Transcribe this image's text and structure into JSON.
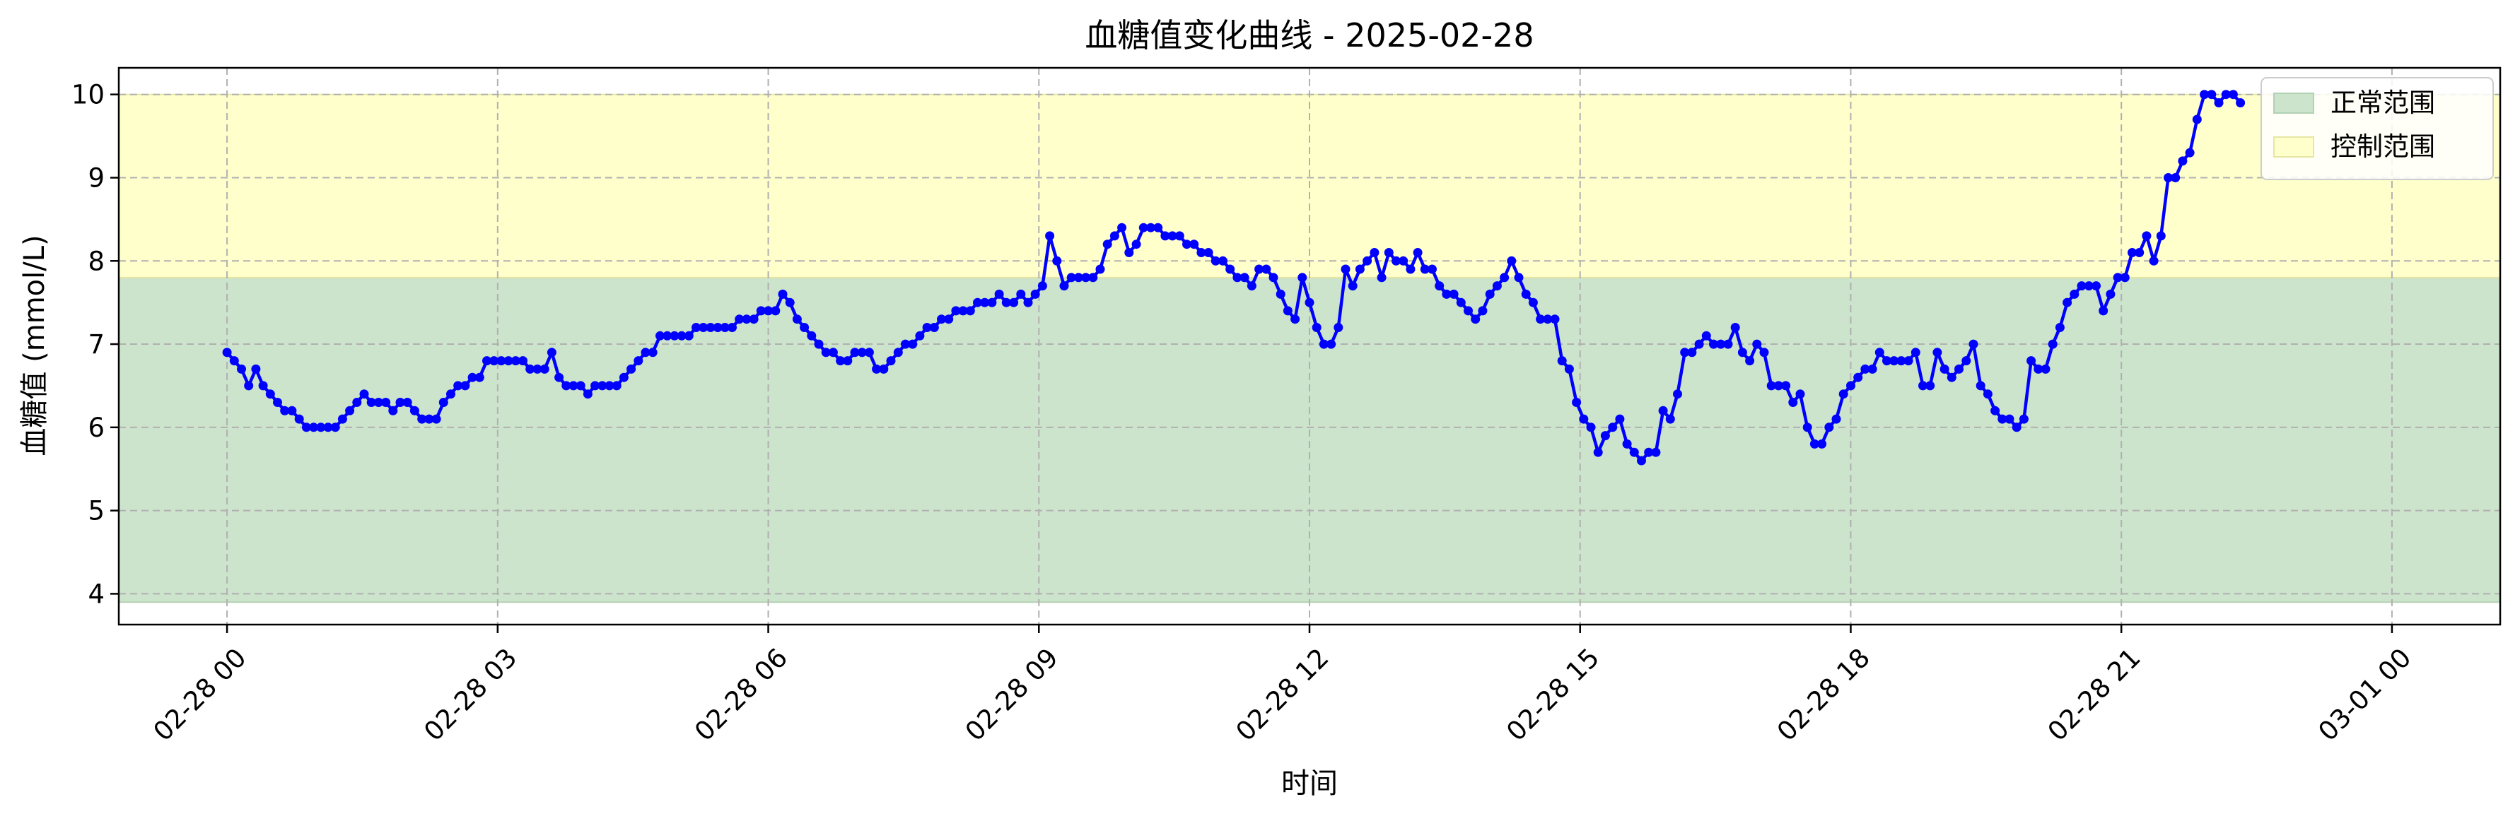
{
  "chart_data": {
    "type": "line",
    "title": "血糖值变化曲线 - 2025-02-28",
    "xlabel": "时间",
    "ylabel": "血糖值 (mmol/L)",
    "x_ticks": [
      {
        "label": "02-28 00",
        "hour": 0
      },
      {
        "label": "02-28 03",
        "hour": 3
      },
      {
        "label": "02-28 06",
        "hour": 6
      },
      {
        "label": "02-28 09",
        "hour": 9
      },
      {
        "label": "02-28 12",
        "hour": 12
      },
      {
        "label": "02-28 15",
        "hour": 15
      },
      {
        "label": "02-28 18",
        "hour": 18
      },
      {
        "label": "02-28 21",
        "hour": 21
      },
      {
        "label": "03-01 00",
        "hour": 24
      }
    ],
    "y_ticks": [
      4,
      5,
      6,
      7,
      8,
      9,
      10
    ],
    "xlim": [
      -1.2,
      25.2
    ],
    "ylim": [
      3.63,
      10.32
    ],
    "grid": true,
    "legend_position": "top-right",
    "bands": [
      {
        "name": "正常范围",
        "y0": 3.9,
        "y1": 7.8,
        "color": "#cce3cc",
        "edge": "#b3d1b3"
      },
      {
        "name": "控制范围",
        "y0": 7.8,
        "y1": 10.0,
        "color": "#ffffcc",
        "edge": "#e6e6a3"
      }
    ],
    "series": [
      {
        "color": "#0000ff",
        "x_unit": "hours since 02-28 00:00",
        "points": [
          [
            0.0,
            6.9
          ],
          [
            0.08,
            6.8
          ],
          [
            0.16,
            6.7
          ],
          [
            0.24,
            6.5
          ],
          [
            0.32,
            6.7
          ],
          [
            0.4,
            6.5
          ],
          [
            0.48,
            6.4
          ],
          [
            0.56,
            6.3
          ],
          [
            0.64,
            6.2
          ],
          [
            0.72,
            6.2
          ],
          [
            0.8,
            6.1
          ],
          [
            0.88,
            6.0
          ],
          [
            0.96,
            6.0
          ],
          [
            1.04,
            6.0
          ],
          [
            1.12,
            6.0
          ],
          [
            1.2,
            6.0
          ],
          [
            1.28,
            6.1
          ],
          [
            1.36,
            6.2
          ],
          [
            1.44,
            6.3
          ],
          [
            1.52,
            6.4
          ],
          [
            1.6,
            6.3
          ],
          [
            1.68,
            6.3
          ],
          [
            1.76,
            6.3
          ],
          [
            1.84,
            6.2
          ],
          [
            1.92,
            6.3
          ],
          [
            2.0,
            6.3
          ],
          [
            2.08,
            6.2
          ],
          [
            2.16,
            6.1
          ],
          [
            2.24,
            6.1
          ],
          [
            2.32,
            6.1
          ],
          [
            2.4,
            6.3
          ],
          [
            2.48,
            6.4
          ],
          [
            2.56,
            6.5
          ],
          [
            2.64,
            6.5
          ],
          [
            2.72,
            6.6
          ],
          [
            2.8,
            6.6
          ],
          [
            2.88,
            6.8
          ],
          [
            2.96,
            6.8
          ],
          [
            3.04,
            6.8
          ],
          [
            3.12,
            6.8
          ],
          [
            3.2,
            6.8
          ],
          [
            3.28,
            6.8
          ],
          [
            3.36,
            6.7
          ],
          [
            3.44,
            6.7
          ],
          [
            3.52,
            6.7
          ],
          [
            3.6,
            6.9
          ],
          [
            3.68,
            6.6
          ],
          [
            3.76,
            6.5
          ],
          [
            3.84,
            6.5
          ],
          [
            3.92,
            6.5
          ],
          [
            4.0,
            6.4
          ],
          [
            4.08,
            6.5
          ],
          [
            4.16,
            6.5
          ],
          [
            4.24,
            6.5
          ],
          [
            4.32,
            6.5
          ],
          [
            4.4,
            6.6
          ],
          [
            4.48,
            6.7
          ],
          [
            4.56,
            6.8
          ],
          [
            4.64,
            6.9
          ],
          [
            4.72,
            6.9
          ],
          [
            4.8,
            7.1
          ],
          [
            4.88,
            7.1
          ],
          [
            4.96,
            7.1
          ],
          [
            5.04,
            7.1
          ],
          [
            5.12,
            7.1
          ],
          [
            5.2,
            7.2
          ],
          [
            5.28,
            7.2
          ],
          [
            5.36,
            7.2
          ],
          [
            5.44,
            7.2
          ],
          [
            5.52,
            7.2
          ],
          [
            5.6,
            7.2
          ],
          [
            5.68,
            7.3
          ],
          [
            5.76,
            7.3
          ],
          [
            5.84,
            7.3
          ],
          [
            5.92,
            7.4
          ],
          [
            6.0,
            7.4
          ],
          [
            6.08,
            7.4
          ],
          [
            6.16,
            7.6
          ],
          [
            6.24,
            7.5
          ],
          [
            6.32,
            7.3
          ],
          [
            6.4,
            7.2
          ],
          [
            6.48,
            7.1
          ],
          [
            6.56,
            7.0
          ],
          [
            6.64,
            6.9
          ],
          [
            6.72,
            6.9
          ],
          [
            6.8,
            6.8
          ],
          [
            6.88,
            6.8
          ],
          [
            6.96,
            6.9
          ],
          [
            7.04,
            6.9
          ],
          [
            7.12,
            6.9
          ],
          [
            7.2,
            6.7
          ],
          [
            7.28,
            6.7
          ],
          [
            7.36,
            6.8
          ],
          [
            7.44,
            6.9
          ],
          [
            7.52,
            7.0
          ],
          [
            7.6,
            7.0
          ],
          [
            7.68,
            7.1
          ],
          [
            7.76,
            7.2
          ],
          [
            7.84,
            7.2
          ],
          [
            7.92,
            7.3
          ],
          [
            8.0,
            7.3
          ],
          [
            8.08,
            7.4
          ],
          [
            8.16,
            7.4
          ],
          [
            8.24,
            7.4
          ],
          [
            8.32,
            7.5
          ],
          [
            8.4,
            7.5
          ],
          [
            8.48,
            7.5
          ],
          [
            8.56,
            7.6
          ],
          [
            8.64,
            7.5
          ],
          [
            8.72,
            7.5
          ],
          [
            8.8,
            7.6
          ],
          [
            8.88,
            7.5
          ],
          [
            8.96,
            7.6
          ],
          [
            9.04,
            7.7
          ],
          [
            9.12,
            8.3
          ],
          [
            9.2,
            8.0
          ],
          [
            9.28,
            7.7
          ],
          [
            9.36,
            7.8
          ],
          [
            9.44,
            7.8
          ],
          [
            9.52,
            7.8
          ],
          [
            9.6,
            7.8
          ],
          [
            9.68,
            7.9
          ],
          [
            9.76,
            8.2
          ],
          [
            9.84,
            8.3
          ],
          [
            9.92,
            8.4
          ],
          [
            10.0,
            8.1
          ],
          [
            10.08,
            8.2
          ],
          [
            10.16,
            8.4
          ],
          [
            10.24,
            8.4
          ],
          [
            10.32,
            8.4
          ],
          [
            10.4,
            8.3
          ],
          [
            10.48,
            8.3
          ],
          [
            10.56,
            8.3
          ],
          [
            10.64,
            8.2
          ],
          [
            10.72,
            8.2
          ],
          [
            10.8,
            8.1
          ],
          [
            10.88,
            8.1
          ],
          [
            10.96,
            8.0
          ],
          [
            11.04,
            8.0
          ],
          [
            11.12,
            7.9
          ],
          [
            11.2,
            7.8
          ],
          [
            11.28,
            7.8
          ],
          [
            11.36,
            7.7
          ],
          [
            11.44,
            7.9
          ],
          [
            11.52,
            7.9
          ],
          [
            11.6,
            7.8
          ],
          [
            11.68,
            7.6
          ],
          [
            11.76,
            7.4
          ],
          [
            11.84,
            7.3
          ],
          [
            11.92,
            7.8
          ],
          [
            12.0,
            7.5
          ],
          [
            12.08,
            7.2
          ],
          [
            12.16,
            7.0
          ],
          [
            12.24,
            7.0
          ],
          [
            12.32,
            7.2
          ],
          [
            12.4,
            7.9
          ],
          [
            12.48,
            7.7
          ],
          [
            12.56,
            7.9
          ],
          [
            12.64,
            8.0
          ],
          [
            12.72,
            8.1
          ],
          [
            12.8,
            7.8
          ],
          [
            12.88,
            8.1
          ],
          [
            12.96,
            8.0
          ],
          [
            13.04,
            8.0
          ],
          [
            13.12,
            7.9
          ],
          [
            13.2,
            8.1
          ],
          [
            13.28,
            7.9
          ],
          [
            13.36,
            7.9
          ],
          [
            13.44,
            7.7
          ],
          [
            13.52,
            7.6
          ],
          [
            13.6,
            7.6
          ],
          [
            13.68,
            7.5
          ],
          [
            13.76,
            7.4
          ],
          [
            13.84,
            7.3
          ],
          [
            13.92,
            7.4
          ],
          [
            14.0,
            7.6
          ],
          [
            14.08,
            7.7
          ],
          [
            14.16,
            7.8
          ],
          [
            14.24,
            8.0
          ],
          [
            14.32,
            7.8
          ],
          [
            14.4,
            7.6
          ],
          [
            14.48,
            7.5
          ],
          [
            14.56,
            7.3
          ],
          [
            14.64,
            7.3
          ],
          [
            14.72,
            7.3
          ],
          [
            14.8,
            6.8
          ],
          [
            14.88,
            6.7
          ],
          [
            14.96,
            6.3
          ],
          [
            15.04,
            6.1
          ],
          [
            15.12,
            6.0
          ],
          [
            15.2,
            5.7
          ],
          [
            15.28,
            5.9
          ],
          [
            15.36,
            6.0
          ],
          [
            15.44,
            6.1
          ],
          [
            15.52,
            5.8
          ],
          [
            15.6,
            5.7
          ],
          [
            15.68,
            5.6
          ],
          [
            15.76,
            5.7
          ],
          [
            15.84,
            5.7
          ],
          [
            15.92,
            6.2
          ],
          [
            16.0,
            6.1
          ],
          [
            16.08,
            6.4
          ],
          [
            16.16,
            6.9
          ],
          [
            16.24,
            6.9
          ],
          [
            16.32,
            7.0
          ],
          [
            16.4,
            7.1
          ],
          [
            16.48,
            7.0
          ],
          [
            16.56,
            7.0
          ],
          [
            16.64,
            7.0
          ],
          [
            16.72,
            7.2
          ],
          [
            16.8,
            6.9
          ],
          [
            16.88,
            6.8
          ],
          [
            16.96,
            7.0
          ],
          [
            17.04,
            6.9
          ],
          [
            17.12,
            6.5
          ],
          [
            17.2,
            6.5
          ],
          [
            17.28,
            6.5
          ],
          [
            17.36,
            6.3
          ],
          [
            17.44,
            6.4
          ],
          [
            17.52,
            6.0
          ],
          [
            17.6,
            5.8
          ],
          [
            17.68,
            5.8
          ],
          [
            17.76,
            6.0
          ],
          [
            17.84,
            6.1
          ],
          [
            17.92,
            6.4
          ],
          [
            18.0,
            6.5
          ],
          [
            18.08,
            6.6
          ],
          [
            18.16,
            6.7
          ],
          [
            18.24,
            6.7
          ],
          [
            18.32,
            6.9
          ],
          [
            18.4,
            6.8
          ],
          [
            18.48,
            6.8
          ],
          [
            18.56,
            6.8
          ],
          [
            18.64,
            6.8
          ],
          [
            18.72,
            6.9
          ],
          [
            18.8,
            6.5
          ],
          [
            18.88,
            6.5
          ],
          [
            18.96,
            6.9
          ],
          [
            19.04,
            6.7
          ],
          [
            19.12,
            6.6
          ],
          [
            19.2,
            6.7
          ],
          [
            19.28,
            6.8
          ],
          [
            19.36,
            7.0
          ],
          [
            19.44,
            6.5
          ],
          [
            19.52,
            6.4
          ],
          [
            19.6,
            6.2
          ],
          [
            19.68,
            6.1
          ],
          [
            19.76,
            6.1
          ],
          [
            19.84,
            6.0
          ],
          [
            19.92,
            6.1
          ],
          [
            20.0,
            6.8
          ],
          [
            20.08,
            6.7
          ],
          [
            20.16,
            6.7
          ],
          [
            20.24,
            7.0
          ],
          [
            20.32,
            7.2
          ],
          [
            20.4,
            7.5
          ],
          [
            20.48,
            7.6
          ],
          [
            20.56,
            7.7
          ],
          [
            20.64,
            7.7
          ],
          [
            20.72,
            7.7
          ],
          [
            20.8,
            7.4
          ],
          [
            20.88,
            7.6
          ],
          [
            20.96,
            7.8
          ],
          [
            21.04,
            7.8
          ],
          [
            21.12,
            8.1
          ],
          [
            21.2,
            8.1
          ],
          [
            21.28,
            8.3
          ],
          [
            21.36,
            8.0
          ],
          [
            21.44,
            8.3
          ],
          [
            21.52,
            9.0
          ],
          [
            21.6,
            9.0
          ],
          [
            21.68,
            9.2
          ],
          [
            21.76,
            9.3
          ],
          [
            21.84,
            9.7
          ],
          [
            21.92,
            10.0
          ],
          [
            22.0,
            10.0
          ],
          [
            22.08,
            9.9
          ],
          [
            22.16,
            10.0
          ],
          [
            22.24,
            10.0
          ],
          [
            22.32,
            9.9
          ]
        ]
      }
    ]
  }
}
